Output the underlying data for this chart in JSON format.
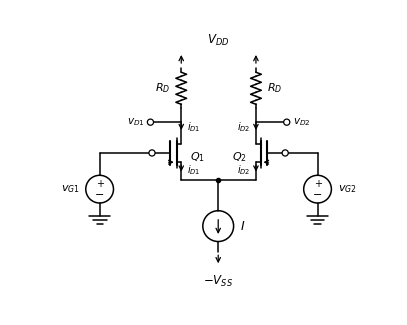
{
  "bg_color": "#ffffff",
  "line_color": "#000000",
  "fig_width": 4.07,
  "fig_height": 3.25,
  "dpi": 100,
  "vdd_label": "$V_{DD}$",
  "vss_label": "$-V_{SS}$",
  "rd1_label": "$R_D$",
  "rd2_label": "$R_D$",
  "q1_label": "$Q_1$",
  "q2_label": "$Q_2$",
  "vg1_label": "$v_{G1}$",
  "vg2_label": "$v_{G2}$",
  "vd1_label": "$v_{D1}$",
  "vd2_label": "$v_{D2}$",
  "id1_top_label": "$i_{D1}$",
  "id2_top_label": "$i_{D2}$",
  "id1_bot_label": "$i_{D1}$",
  "id2_bot_label": "$i_{D2}$",
  "I_label": "$I$"
}
